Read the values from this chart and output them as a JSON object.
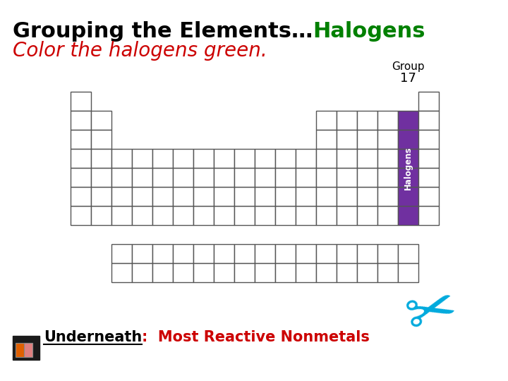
{
  "title_black": "Grouping the Elements…",
  "title_green": "Halogens",
  "subtitle": "Color the halogens green.",
  "subtitle_color": "#cc0000",
  "group_label": "Group",
  "group_number": "17",
  "halogen_label": "Halogens",
  "halogen_color": "#7030a0",
  "halogen_text_color": "#ffffff",
  "underneath_label": "Underneath",
  "underneath_colon": ":",
  "underneath_text": "  Most Reactive Nonmetals",
  "underneath_text_color": "#cc0000",
  "bg_color": "#ffffff",
  "cell_color": "#ffffff",
  "cell_edge_color": "#555555",
  "title_fontsize": 22,
  "subtitle_fontsize": 20,
  "halogen_col": 16,
  "halogen_rows": [
    1,
    2,
    3,
    4,
    5,
    6
  ]
}
